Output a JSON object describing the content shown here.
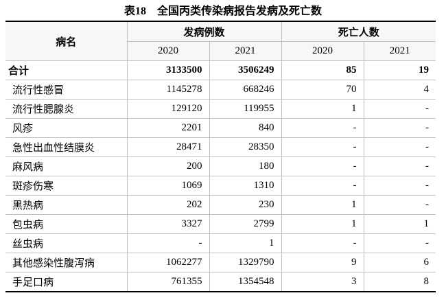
{
  "title": "表18　全国丙类传染病报告发病及死亡数",
  "table": {
    "header": {
      "name": "病名",
      "groups": [
        "发病例数",
        "死亡人数"
      ],
      "years": [
        "2020",
        "2021",
        "2020",
        "2021"
      ]
    },
    "rows": [
      [
        "合计",
        3133500,
        3506249,
        85,
        19
      ],
      [
        "流行性感冒",
        1145278,
        668246,
        70,
        4
      ],
      [
        "流行性腮腺炎",
        129120,
        119955,
        1,
        "-"
      ],
      [
        "风疹",
        2201,
        840,
        "-",
        "-"
      ],
      [
        "急性出血性结膜炎",
        28471,
        28350,
        "-",
        "-"
      ],
      [
        "麻风病",
        200,
        180,
        "-",
        "-"
      ],
      [
        "斑疹伤寒",
        1069,
        1310,
        "-",
        "-"
      ],
      [
        "黑热病",
        202,
        230,
        1,
        "-"
      ],
      [
        "包虫病",
        3327,
        2799,
        1,
        1
      ],
      [
        "丝虫病",
        "-",
        1,
        "-",
        "-"
      ],
      [
        "其他感染性腹泻病",
        1062277,
        1329790,
        9,
        6
      ],
      [
        "手足口病",
        761355,
        1354548,
        3,
        8
      ]
    ]
  }
}
